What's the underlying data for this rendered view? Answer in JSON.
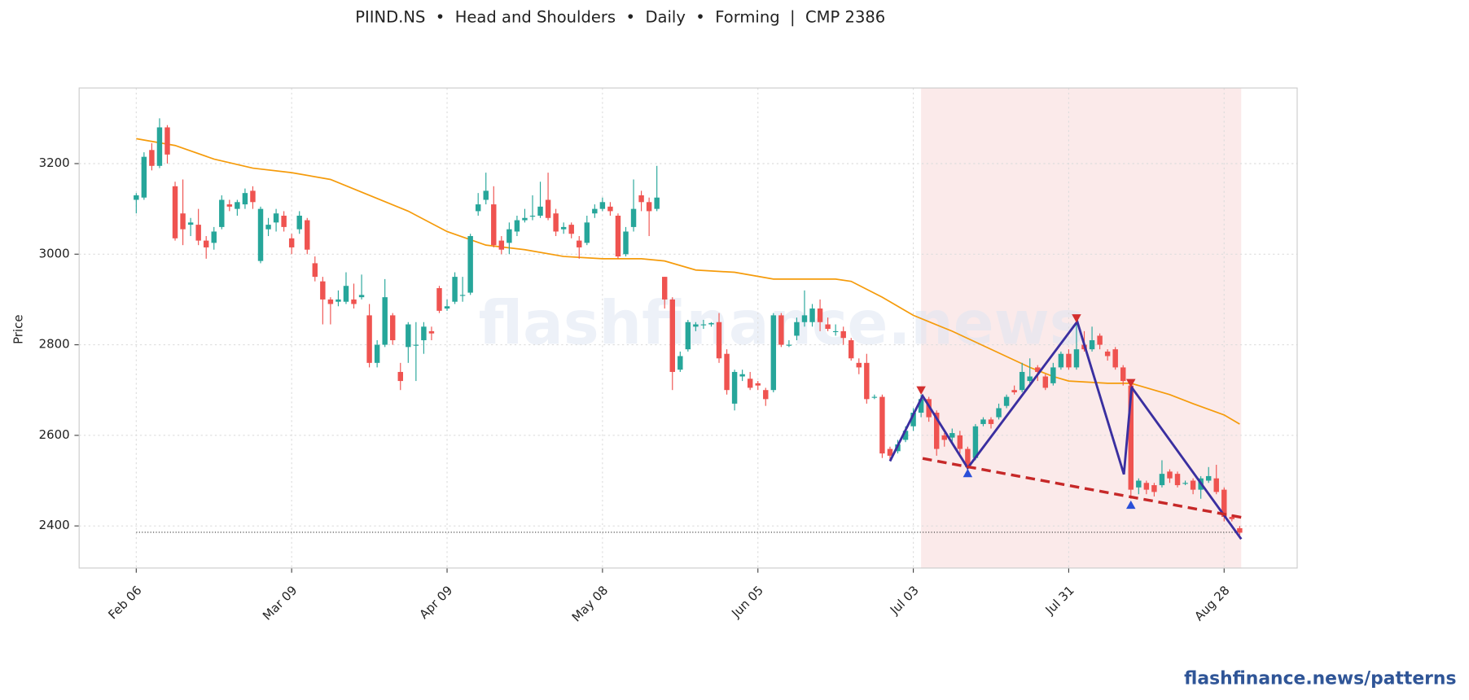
{
  "chart_data": {
    "type": "candlestick",
    "title": "PIIND.NS  •  Head and Shoulders  •  Daily  •  Forming  |  CMP 2386",
    "ylabel": "Price",
    "watermark": "flashfinance.news",
    "footer": "flashfinance.news/patterns",
    "up_color": "#26a69a",
    "down_color": "#ef5350",
    "grid": true,
    "xlim": [
      -7.35,
      149.4
    ],
    "ylim": [
      2307,
      3367
    ],
    "yticks": [
      2400,
      2600,
      2800,
      3000,
      3200
    ],
    "xticks": [
      {
        "value": 0,
        "label": "Feb 06"
      },
      {
        "value": 20,
        "label": "Mar 09"
      },
      {
        "value": 40,
        "label": "Apr 09"
      },
      {
        "value": 60,
        "label": "May 08"
      },
      {
        "value": 80,
        "label": "Jun 05"
      },
      {
        "value": 100,
        "label": "Jul 03"
      },
      {
        "value": 120,
        "label": "Jul 31"
      },
      {
        "value": 140,
        "label": "Aug 28"
      }
    ],
    "open": [
      3120,
      3125,
      3230,
      3195,
      3280,
      3150,
      3090,
      3065,
      3065,
      3030,
      3025,
      3060,
      3110,
      3100,
      3110,
      3140,
      2985,
      3055,
      3070,
      3085,
      3035,
      3055,
      3075,
      2980,
      2940,
      2900,
      2895,
      2895,
      2900,
      2905,
      2865,
      2760,
      2800,
      2865,
      2740,
      2795,
      2800,
      2810,
      2830,
      2925,
      2880,
      2895,
      2910,
      2915,
      3095,
      3120,
      3110,
      3030,
      3025,
      3050,
      3075,
      3085,
      3085,
      3120,
      3090,
      3055,
      3065,
      3030,
      3025,
      3090,
      3100,
      3105,
      3085,
      3000,
      3060,
      3130,
      3115,
      3100,
      2950,
      2900,
      2745,
      2790,
      2840,
      2845,
      2845,
      2850,
      2780,
      2670,
      2730,
      2725,
      2715,
      2700,
      2700,
      2865,
      2800,
      2820,
      2850,
      2850,
      2880,
      2845,
      2830,
      2830,
      2810,
      2760,
      2760,
      2685,
      2685,
      2570,
      2565,
      2590,
      2620,
      2650,
      2680,
      2650,
      2600,
      2595,
      2600,
      2570,
      2550,
      2625,
      2635,
      2640,
      2665,
      2700,
      2700,
      2720,
      2750,
      2730,
      2715,
      2750,
      2780,
      2750,
      2800,
      2790,
      2820,
      2785,
      2790,
      2750,
      2710,
      2485,
      2495,
      2490,
      2490,
      2520,
      2515,
      2495,
      2500,
      2480,
      2500,
      2505,
      2480,
      2420,
      2395
    ],
    "high": [
      3135,
      3225,
      3245,
      3300,
      3285,
      3160,
      3165,
      3080,
      3100,
      3040,
      3060,
      3130,
      3120,
      3120,
      3145,
      3150,
      3105,
      3080,
      3100,
      3095,
      3045,
      3095,
      3080,
      2995,
      2950,
      2905,
      2920,
      2960,
      2935,
      2955,
      2890,
      2810,
      2945,
      2870,
      2760,
      2850,
      2850,
      2850,
      2840,
      2930,
      2900,
      2960,
      2950,
      3045,
      3135,
      3180,
      3150,
      3040,
      3070,
      3085,
      3100,
      3130,
      3160,
      3180,
      3100,
      3070,
      3070,
      3040,
      3085,
      3110,
      3125,
      3115,
      3090,
      3060,
      3165,
      3140,
      3125,
      3195,
      2950,
      2905,
      2785,
      2855,
      2850,
      2855,
      2850,
      2870,
      2790,
      2745,
      2745,
      2740,
      2720,
      2705,
      2870,
      2870,
      2810,
      2860,
      2920,
      2890,
      2900,
      2860,
      2845,
      2840,
      2815,
      2770,
      2780,
      2690,
      2690,
      2575,
      2590,
      2620,
      2660,
      2690,
      2685,
      2655,
      2605,
      2615,
      2610,
      2575,
      2625,
      2640,
      2640,
      2670,
      2690,
      2710,
      2760,
      2770,
      2755,
      2735,
      2760,
      2785,
      2790,
      2850,
      2830,
      2840,
      2825,
      2790,
      2795,
      2755,
      2715,
      2505,
      2500,
      2495,
      2545,
      2525,
      2520,
      2500,
      2505,
      2510,
      2530,
      2535,
      2485,
      2425,
      2400
    ],
    "low": [
      3090,
      3120,
      3185,
      3190,
      3200,
      3030,
      3020,
      3040,
      3020,
      2990,
      3010,
      3055,
      3095,
      3085,
      3100,
      3100,
      2980,
      3040,
      3050,
      3050,
      3000,
      3045,
      3000,
      2940,
      2845,
      2845,
      2885,
      2890,
      2880,
      2900,
      2750,
      2750,
      2795,
      2800,
      2700,
      2760,
      2720,
      2780,
      2810,
      2870,
      2875,
      2890,
      2895,
      2910,
      3085,
      3110,
      3015,
      3000,
      3000,
      3040,
      3070,
      3075,
      3080,
      3075,
      3040,
      3045,
      3035,
      2990,
      3020,
      3080,
      3095,
      3085,
      2990,
      2995,
      3050,
      3095,
      3040,
      3095,
      2880,
      2700,
      2740,
      2785,
      2830,
      2835,
      2840,
      2760,
      2690,
      2655,
      2720,
      2700,
      2700,
      2665,
      2695,
      2795,
      2795,
      2810,
      2840,
      2840,
      2830,
      2830,
      2820,
      2800,
      2765,
      2735,
      2670,
      2680,
      2550,
      2545,
      2560,
      2585,
      2610,
      2640,
      2630,
      2555,
      2575,
      2585,
      2560,
      2520,
      2545,
      2620,
      2615,
      2635,
      2660,
      2690,
      2695,
      2715,
      2720,
      2700,
      2710,
      2745,
      2745,
      2745,
      2785,
      2785,
      2790,
      2765,
      2745,
      2710,
      2460,
      2470,
      2470,
      2465,
      2485,
      2495,
      2485,
      2490,
      2470,
      2460,
      2495,
      2470,
      2410,
      2410,
      2380
    ],
    "close": [
      3130,
      3215,
      3195,
      3280,
      3220,
      3035,
      3055,
      3070,
      3030,
      3015,
      3050,
      3120,
      3105,
      3115,
      3135,
      3115,
      3100,
      3065,
      3090,
      3060,
      3015,
      3085,
      3010,
      2950,
      2900,
      2890,
      2900,
      2930,
      2890,
      2910,
      2760,
      2800,
      2905,
      2810,
      2720,
      2845,
      2800,
      2840,
      2825,
      2875,
      2885,
      2950,
      2910,
      3040,
      3110,
      3140,
      3020,
      3010,
      3055,
      3075,
      3080,
      3085,
      3105,
      3080,
      3050,
      3060,
      3045,
      3015,
      3070,
      3100,
      3115,
      3095,
      2995,
      3050,
      3100,
      3115,
      3095,
      3125,
      2900,
      2740,
      2775,
      2850,
      2845,
      2845,
      2848,
      2770,
      2700,
      2740,
      2735,
      2705,
      2710,
      2680,
      2865,
      2800,
      2800,
      2850,
      2865,
      2880,
      2850,
      2835,
      2830,
      2815,
      2770,
      2750,
      2680,
      2685,
      2560,
      2555,
      2580,
      2610,
      2650,
      2680,
      2640,
      2570,
      2590,
      2605,
      2570,
      2530,
      2620,
      2635,
      2625,
      2660,
      2685,
      2695,
      2740,
      2730,
      2740,
      2705,
      2750,
      2780,
      2750,
      2790,
      2790,
      2810,
      2800,
      2775,
      2750,
      2720,
      2480,
      2500,
      2480,
      2475,
      2515,
      2505,
      2490,
      2495,
      2480,
      2505,
      2510,
      2475,
      2420,
      2415,
      2385
    ],
    "moving_average": {
      "color": "#f59b0b",
      "x": [
        0,
        5,
        10,
        15,
        20,
        25,
        30,
        35,
        40,
        45,
        50,
        55,
        60,
        65,
        68,
        72,
        77,
        82,
        86,
        90,
        92,
        96,
        100,
        105,
        110,
        115,
        118,
        120,
        125,
        128,
        130,
        133,
        136,
        140,
        142
      ],
      "values": [
        3255,
        3240,
        3210,
        3190,
        3180,
        3165,
        3130,
        3095,
        3050,
        3020,
        3010,
        2995,
        2990,
        2990,
        2985,
        2965,
        2960,
        2945,
        2945,
        2945,
        2940,
        2905,
        2865,
        2830,
        2790,
        2750,
        2730,
        2720,
        2715,
        2715,
        2705,
        2690,
        2670,
        2645,
        2625
      ]
    },
    "pattern": {
      "color": "#3a2fa0",
      "x": [
        97,
        101.2,
        107,
        121.1,
        127.1,
        128.1,
        142.2
      ],
      "values": [
        2543,
        2687,
        2528,
        2851,
        2514,
        2706,
        2371
      ]
    },
    "neckline": {
      "color": "#c62828",
      "x": [
        101.2,
        142.2
      ],
      "values": [
        2549,
        2419
      ]
    },
    "peaks": {
      "color": "#d32f2f",
      "x": [
        101,
        121,
        128
      ],
      "values": [
        2698,
        2857,
        2714
      ]
    },
    "troughs": {
      "color": "#2a4fd8",
      "x": [
        107,
        128
      ],
      "values": [
        2518,
        2448
      ]
    },
    "cmp_level": {
      "value": 2386,
      "x": [
        0,
        142
      ]
    },
    "shaded_xrange": [
      101,
      142.2
    ]
  }
}
